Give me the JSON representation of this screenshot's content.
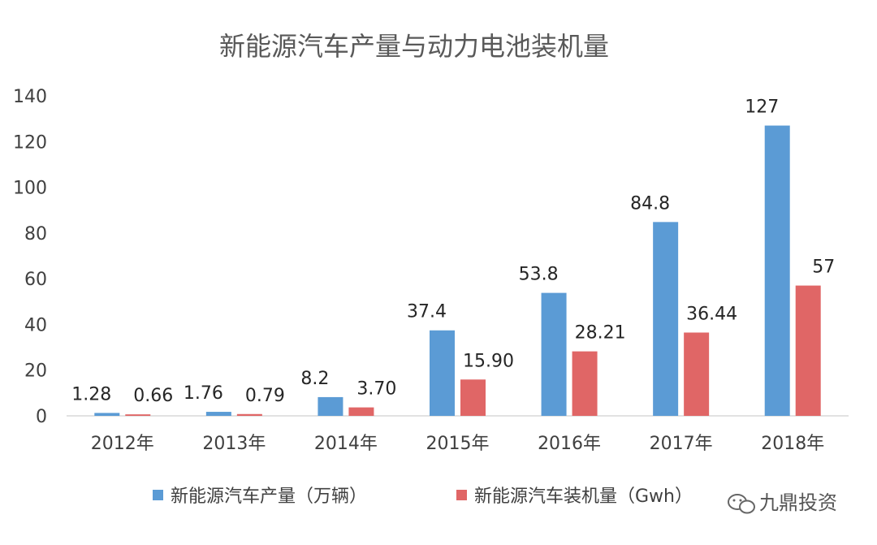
{
  "chart_data": {
    "type": "bar",
    "title": "新能源汽车产量与动力电池装机量",
    "categories": [
      "2012年",
      "2013年",
      "2014年",
      "2015年",
      "2016年",
      "2017年",
      "2018年"
    ],
    "series": [
      {
        "name": "新能源汽车产量（万辆）",
        "color": "#5b9bd5",
        "values": [
          1.28,
          1.76,
          8.2,
          37.4,
          53.8,
          84.8,
          127
        ],
        "labels": [
          "1.28",
          "1.76",
          "8.2",
          "37.4",
          "53.8",
          "84.8",
          "127"
        ]
      },
      {
        "name": "新能源汽车装机量（Gwh）",
        "color": "#e06666",
        "values": [
          0.66,
          0.79,
          3.7,
          15.9,
          28.21,
          36.44,
          57
        ],
        "labels": [
          "0.66",
          "0.79",
          "3.70",
          "15.90",
          "28.21",
          "36.44",
          "57"
        ]
      }
    ],
    "yticks": [
      "0",
      "20",
      "40",
      "60",
      "80",
      "100",
      "120",
      "140"
    ],
    "ylim": [
      0,
      140
    ],
    "grid": false,
    "legend_position": "bottom"
  },
  "watermark": {
    "text": "九鼎投资",
    "icon": "wechat-icon"
  }
}
